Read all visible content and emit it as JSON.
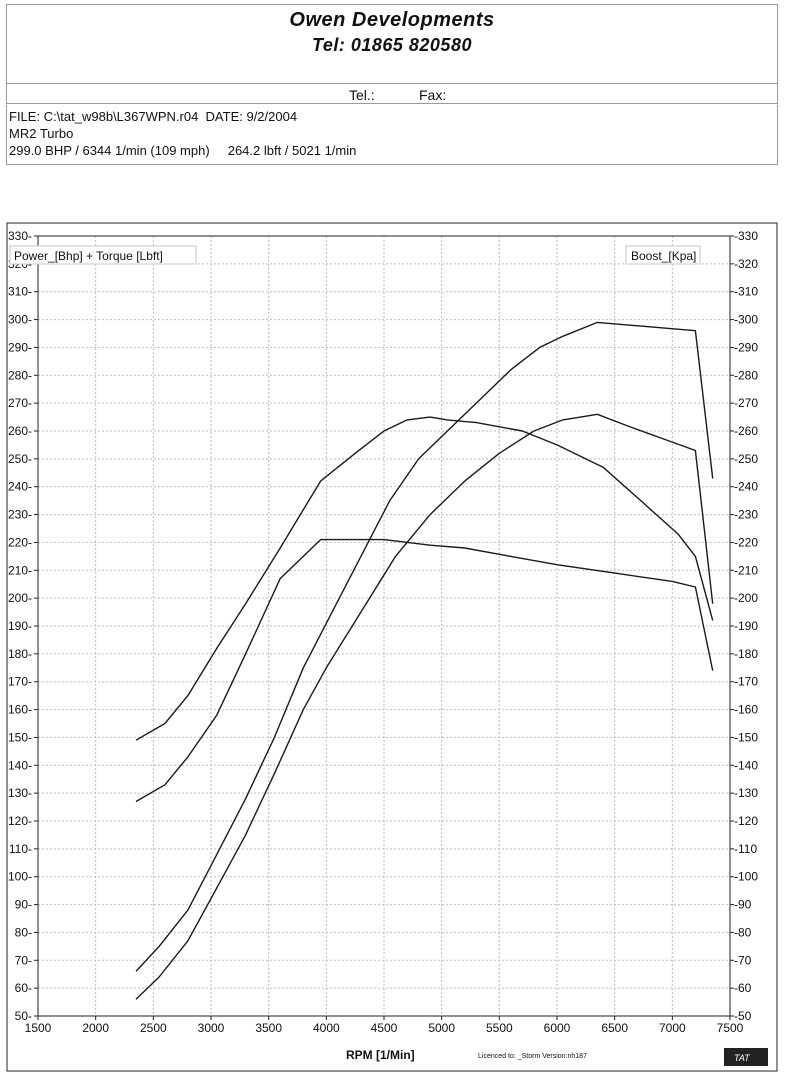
{
  "header": {
    "company": "Owen Developments",
    "phone": "Tel: 01865 820580",
    "tel_label": "Tel.:",
    "fax_label": "Fax:"
  },
  "info": {
    "file_line": "FILE: C:\\tat_w98b\\L367WPN.r04  DATE: 9/2/2004",
    "car": "MR2 Turbo",
    "peaks": "299.0 BHP / 6344 1/min (109 mph)     264.2 lbft / 5021 1/min"
  },
  "chart_data": {
    "type": "line",
    "xlabel": "RPM  [1/Min]",
    "ylabel_left": "Power_[Bhp] + Torque [Lbft]",
    "ylabel_right": "Boost_[Kpa]",
    "xlim": [
      1500,
      7500
    ],
    "ylim": [
      50,
      330
    ],
    "x_ticks": [
      1500,
      2000,
      2500,
      3000,
      3500,
      4000,
      4500,
      5000,
      5500,
      6000,
      6500,
      7000,
      7500
    ],
    "y_ticks_left": [
      50,
      60,
      70,
      80,
      90,
      100,
      110,
      120,
      130,
      140,
      150,
      160,
      170,
      180,
      190,
      200,
      210,
      220,
      230,
      240,
      250,
      260,
      270,
      280,
      290,
      300,
      310,
      320,
      330
    ],
    "y_ticks_right": [
      "-50",
      "-60",
      "-70",
      "-80",
      "-90",
      "-100",
      "-110",
      "-120",
      "-130",
      "-140",
      "-150",
      "-160",
      "-170",
      "-180",
      "-190",
      "-200",
      "-210",
      "-220",
      "-230",
      "-240",
      "-250",
      "-260",
      "-270",
      "-280",
      "-290",
      "-300",
      "-310",
      "-320",
      "-330"
    ],
    "grid": true,
    "series": [
      {
        "x": [
          2350,
          2550,
          2800,
          3050,
          3300,
          3550,
          3800,
          4050,
          4300,
          4550,
          4800,
          5050,
          5300,
          5600,
          5850,
          6050,
          6350,
          7200,
          7350
        ],
        "values": [
          66,
          75,
          88,
          108,
          128,
          150,
          175,
          195,
          215,
          235,
          250,
          260,
          270,
          282,
          290,
          294,
          299,
          296,
          243
        ]
      },
      {
        "x": [
          2350,
          2550,
          2800,
          3050,
          3300,
          3550,
          3800,
          4000,
          4300,
          4600,
          4900,
          5200,
          5500,
          5800,
          6050,
          6350,
          6600,
          7000,
          7200,
          7350
        ],
        "values": [
          56,
          64,
          77,
          96,
          115,
          137,
          160,
          175,
          195,
          215,
          230,
          242,
          252,
          260,
          264,
          266,
          262,
          256,
          253,
          198
        ]
      },
      {
        "x": [
          2350,
          2600,
          2800,
          3050,
          3300,
          3600,
          3950,
          4250,
          4500,
          4700,
          4900,
          5050,
          5300,
          5700,
          6000,
          6400,
          6700,
          7050,
          7200,
          7350
        ],
        "values": [
          149,
          155,
          165,
          182,
          198,
          218,
          242,
          252,
          260,
          264,
          265,
          264,
          263,
          260,
          255,
          247,
          236,
          223,
          215,
          192
        ]
      },
      {
        "x": [
          2350,
          2600,
          2800,
          3050,
          3300,
          3600,
          3950,
          4500,
          4900,
          5200,
          5600,
          6000,
          6500,
          7000,
          7200,
          7350
        ],
        "values": [
          127,
          133,
          143,
          158,
          180,
          207,
          221,
          221,
          219,
          218,
          215,
          212,
          209,
          206,
          204,
          174
        ]
      }
    ]
  },
  "footer": {
    "licence": "Licenced to:  _Storm   Version:nh187",
    "logo": "TAT"
  }
}
